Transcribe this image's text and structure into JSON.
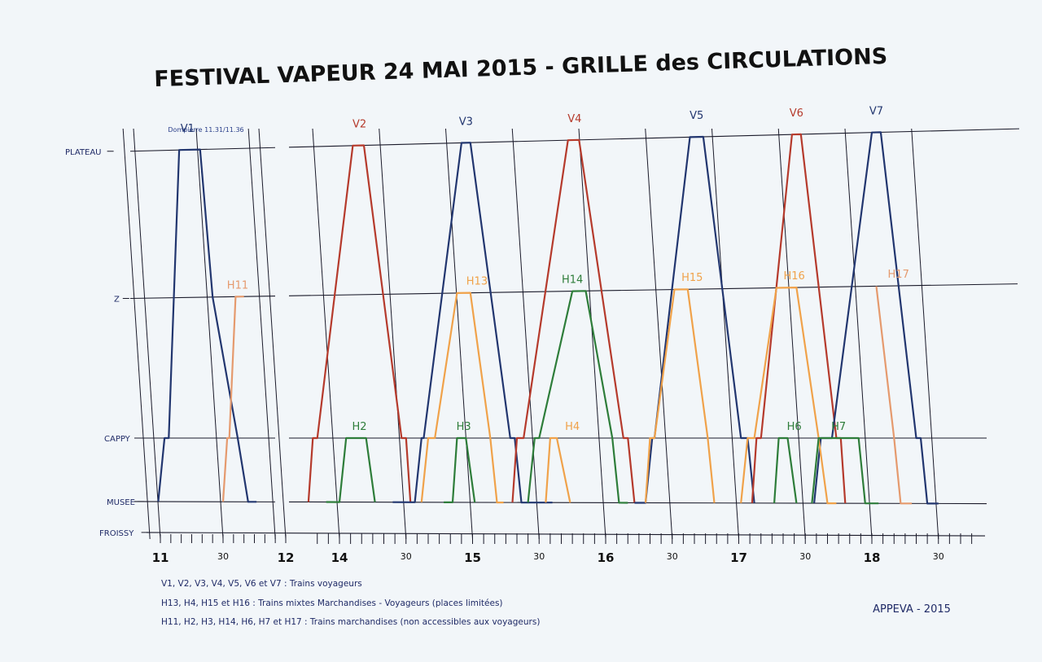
{
  "title": "FESTIVAL VAPEUR 24 MAI 2015 - GRILLE  des  CIRCULATIONS",
  "v1_note": "Dompierre 11.31/11.36",
  "stations": [
    "PLATEAU",
    "Z",
    "CAPPY",
    "MUSEE",
    "FROISSY"
  ],
  "hour_labels": [
    {
      "text": "11",
      "t": 660
    },
    {
      "text": "30",
      "t": 690
    },
    {
      "text": "12",
      "t": 720
    },
    {
      "text": "14",
      "t": 840
    },
    {
      "text": "30",
      "t": 870
    },
    {
      "text": "15",
      "t": 900
    },
    {
      "text": "30",
      "t": 930
    },
    {
      "text": "16",
      "t": 960
    },
    {
      "text": "30",
      "t": 990
    },
    {
      "text": "17",
      "t": 1020
    },
    {
      "text": "30",
      "t": 1050
    },
    {
      "text": "18",
      "t": 1080
    },
    {
      "text": "30",
      "t": 1110
    }
  ],
  "trains": [
    {
      "name": "V1",
      "kind": "voyageurs",
      "color": "#22366f",
      "label_t": 673,
      "label_station": "PLATEAU",
      "path": [
        [
          659,
          "MUSEE"
        ],
        [
          662,
          "CAPPY"
        ],
        [
          664,
          "CAPPY"
        ],
        [
          669,
          "PLATEAU"
        ],
        [
          679,
          "PLATEAU"
        ],
        [
          685,
          "Z"
        ],
        [
          697,
          "CAPPY"
        ],
        [
          702,
          "MUSEE"
        ],
        [
          706,
          "MUSEE"
        ]
      ]
    },
    {
      "name": "V2",
      "kind": "voyageurs",
      "color": "#b53a2c",
      "label_t": 849,
      "label_station": "PLATEAU",
      "path": [
        [
          826,
          "MUSEE"
        ],
        [
          828,
          "CAPPY"
        ],
        [
          830,
          "CAPPY"
        ],
        [
          846,
          "PLATEAU"
        ],
        [
          851,
          "PLATEAU"
        ],
        [
          868,
          "CAPPY"
        ],
        [
          870,
          "CAPPY"
        ],
        [
          872,
          "MUSEE"
        ]
      ]
    },
    {
      "name": "V3",
      "kind": "voyageurs",
      "color": "#22366f",
      "label_t": 897,
      "label_station": "PLATEAU",
      "path": [
        [
          864,
          "MUSEE"
        ],
        [
          874,
          "MUSEE"
        ],
        [
          877,
          "CAPPY"
        ],
        [
          878,
          "CAPPY"
        ],
        [
          895,
          "PLATEAU"
        ],
        [
          899,
          "PLATEAU"
        ],
        [
          917,
          "CAPPY"
        ],
        [
          919,
          "CAPPY"
        ],
        [
          922,
          "MUSEE"
        ],
        [
          936,
          "MUSEE"
        ]
      ]
    },
    {
      "name": "V4",
      "kind": "voyageurs",
      "color": "#b53a2c",
      "label_t": 946,
      "label_station": "PLATEAU",
      "path": [
        [
          918,
          "MUSEE"
        ],
        [
          920,
          "CAPPY"
        ],
        [
          923,
          "CAPPY"
        ],
        [
          943,
          "PLATEAU"
        ],
        [
          948,
          "PLATEAU"
        ],
        [
          968,
          "CAPPY"
        ],
        [
          970,
          "CAPPY"
        ],
        [
          973,
          "MUSEE"
        ]
      ]
    },
    {
      "name": "V5",
      "kind": "voyageurs",
      "color": "#22366f",
      "label_t": 1001,
      "label_station": "PLATEAU",
      "path": [
        [
          973,
          "MUSEE"
        ],
        [
          978,
          "MUSEE"
        ],
        [
          981,
          "CAPPY"
        ],
        [
          982,
          "CAPPY"
        ],
        [
          998,
          "PLATEAU"
        ],
        [
          1004,
          "PLATEAU"
        ],
        [
          1021,
          "CAPPY"
        ],
        [
          1024,
          "CAPPY"
        ],
        [
          1027,
          "MUSEE"
        ]
      ]
    },
    {
      "name": "V6",
      "kind": "voyageurs",
      "color": "#b53a2c",
      "label_t": 1046,
      "label_station": "PLATEAU",
      "path": [
        [
          1026,
          "MUSEE"
        ],
        [
          1028,
          "CAPPY"
        ],
        [
          1030,
          "CAPPY"
        ],
        [
          1044,
          "PLATEAU"
        ],
        [
          1048,
          "PLATEAU"
        ],
        [
          1064,
          "CAPPY"
        ],
        [
          1066,
          "CAPPY"
        ],
        [
          1068,
          "MUSEE"
        ]
      ]
    },
    {
      "name": "V7",
      "kind": "voyageurs",
      "color": "#22366f",
      "label_t": 1082,
      "label_station": "PLATEAU",
      "path": [
        [
          1054,
          "MUSEE"
        ],
        [
          1057,
          "CAPPY"
        ],
        [
          1062,
          "CAPPY"
        ],
        [
          1080,
          "PLATEAU"
        ],
        [
          1084,
          "PLATEAU"
        ],
        [
          1100,
          "CAPPY"
        ],
        [
          1102,
          "CAPPY"
        ],
        [
          1105,
          "MUSEE"
        ],
        [
          1110,
          "MUSEE"
        ]
      ]
    },
    {
      "name": "H11",
      "kind": "marchandises",
      "color": "#e59a6e",
      "label_t": 697,
      "label_station": "Z",
      "path": [
        [
          690,
          "MUSEE"
        ],
        [
          692,
          "CAPPY"
        ],
        [
          693,
          "CAPPY"
        ],
        [
          696,
          "Z"
        ],
        [
          700,
          "Z"
        ]
      ]
    },
    {
      "name": "H2",
      "kind": "marchandises",
      "color": "#2e7d3a",
      "label_t": 849,
      "label_station": "CAPPY",
      "path": [
        [
          834,
          "MUSEE"
        ],
        [
          840,
          "MUSEE"
        ],
        [
          843,
          "CAPPY"
        ],
        [
          852,
          "CAPPY"
        ],
        [
          856,
          "MUSEE"
        ]
      ]
    },
    {
      "name": "H13",
      "kind": "mixtes",
      "color": "#f0a24a",
      "label_t": 902,
      "label_station": "Z",
      "path": [
        [
          877,
          "MUSEE"
        ],
        [
          880,
          "CAPPY"
        ],
        [
          883,
          "CAPPY"
        ],
        [
          893,
          "Z"
        ],
        [
          899,
          "Z"
        ],
        [
          908,
          "CAPPY"
        ],
        [
          911,
          "MUSEE"
        ],
        [
          914,
          "MUSEE"
        ]
      ]
    },
    {
      "name": "H3",
      "kind": "marchandises",
      "color": "#2e7d3a",
      "label_t": 896,
      "label_station": "CAPPY",
      "path": [
        [
          887,
          "MUSEE"
        ],
        [
          891,
          "MUSEE"
        ],
        [
          893,
          "CAPPY"
        ],
        [
          897,
          "CAPPY"
        ],
        [
          901,
          "MUSEE"
        ]
      ]
    },
    {
      "name": "H14",
      "kind": "marchandises",
      "color": "#2e7d3a",
      "label_t": 945,
      "label_station": "Z",
      "path": [
        [
          925,
          "MUSEE"
        ],
        [
          928,
          "CAPPY"
        ],
        [
          930,
          "CAPPY"
        ],
        [
          945,
          "Z"
        ],
        [
          951,
          "Z"
        ],
        [
          963,
          "CAPPY"
        ],
        [
          966,
          "MUSEE"
        ],
        [
          970,
          "MUSEE"
        ]
      ]
    },
    {
      "name": "H4",
      "kind": "mixtes",
      "color": "#f0a24a",
      "label_t": 945,
      "label_station": "CAPPY",
      "path": [
        [
          933,
          "MUSEE"
        ],
        [
          935,
          "CAPPY"
        ],
        [
          938,
          "CAPPY"
        ],
        [
          944,
          "MUSEE"
        ]
      ]
    },
    {
      "name": "H15",
      "kind": "mixtes",
      "color": "#f0a24a",
      "label_t": 999,
      "label_station": "Z",
      "path": [
        [
          978,
          "MUSEE"
        ],
        [
          980,
          "CAPPY"
        ],
        [
          982,
          "CAPPY"
        ],
        [
          991,
          "Z"
        ],
        [
          997,
          "Z"
        ],
        [
          1006,
          "CAPPY"
        ],
        [
          1009,
          "MUSEE"
        ]
      ]
    },
    {
      "name": "H16",
      "kind": "mixtes",
      "color": "#f0a24a",
      "label_t": 1045,
      "label_station": "Z",
      "path": [
        [
          1021,
          "MUSEE"
        ],
        [
          1024,
          "CAPPY"
        ],
        [
          1027,
          "CAPPY"
        ],
        [
          1037,
          "Z"
        ],
        [
          1046,
          "Z"
        ],
        [
          1056,
          "CAPPY"
        ],
        [
          1060,
          "MUSEE"
        ],
        [
          1064,
          "MUSEE"
        ]
      ]
    },
    {
      "name": "H6",
      "kind": "marchandises",
      "color": "#2e7d3a",
      "label_t": 1045,
      "label_station": "CAPPY",
      "path": [
        [
          1036,
          "MUSEE"
        ],
        [
          1038,
          "CAPPY"
        ],
        [
          1042,
          "CAPPY"
        ],
        [
          1046,
          "MUSEE"
        ]
      ]
    },
    {
      "name": "H7",
      "kind": "marchandises",
      "color": "#2e7d3a",
      "label_t": 1065,
      "label_station": "CAPPY",
      "path": [
        [
          1053,
          "MUSEE"
        ],
        [
          1056,
          "CAPPY"
        ],
        [
          1064,
          "CAPPY"
        ],
        [
          1074,
          "CAPPY"
        ],
        [
          1077,
          "MUSEE"
        ],
        [
          1083,
          "MUSEE"
        ]
      ]
    },
    {
      "name": "H17",
      "kind": "marchandises",
      "color": "#e59a6e",
      "label_t": 1092,
      "label_station": "Z",
      "path": [
        [
          1082,
          "Z"
        ],
        [
          1090,
          "CAPPY"
        ],
        [
          1093,
          "MUSEE"
        ],
        [
          1098,
          "MUSEE"
        ]
      ]
    }
  ],
  "legend": [
    "V1, V2, V3, V4, V5, V6 et V7 : Trains voyageurs",
    "H13, H4, H15 et H16 : Trains mixtes Marchandises - Voyageurs (places limitées)",
    "H11, H2, H3, H14, H6, H7 et H17 : Trains marchandises (non accessibles aux voyageurs)"
  ],
  "footer": "APPEVA - 2015",
  "colors": {
    "grid": "#1a1a2a",
    "title": "#111111",
    "legend_text": "#1f2a66"
  }
}
